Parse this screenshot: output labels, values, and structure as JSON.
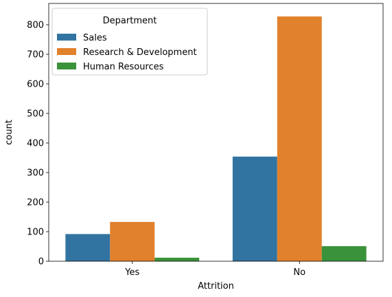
{
  "chart_data": {
    "type": "bar",
    "title": "",
    "xlabel": "Attrition",
    "ylabel": "count",
    "categories": [
      "Yes",
      "No"
    ],
    "ylim": [
      0,
      872
    ],
    "yticks": [
      0,
      100,
      200,
      300,
      400,
      500,
      600,
      700,
      800
    ],
    "grid": false,
    "legend": {
      "title": "Department",
      "placement": "top-left"
    },
    "series": [
      {
        "name": "Sales",
        "color": "#3274a1",
        "values": [
          92,
          354
        ]
      },
      {
        "name": "Research & Development",
        "color": "#e1812c",
        "values": [
          133,
          828
        ]
      },
      {
        "name": "Human Resources",
        "color": "#3a923a",
        "values": [
          12,
          51
        ]
      }
    ]
  }
}
